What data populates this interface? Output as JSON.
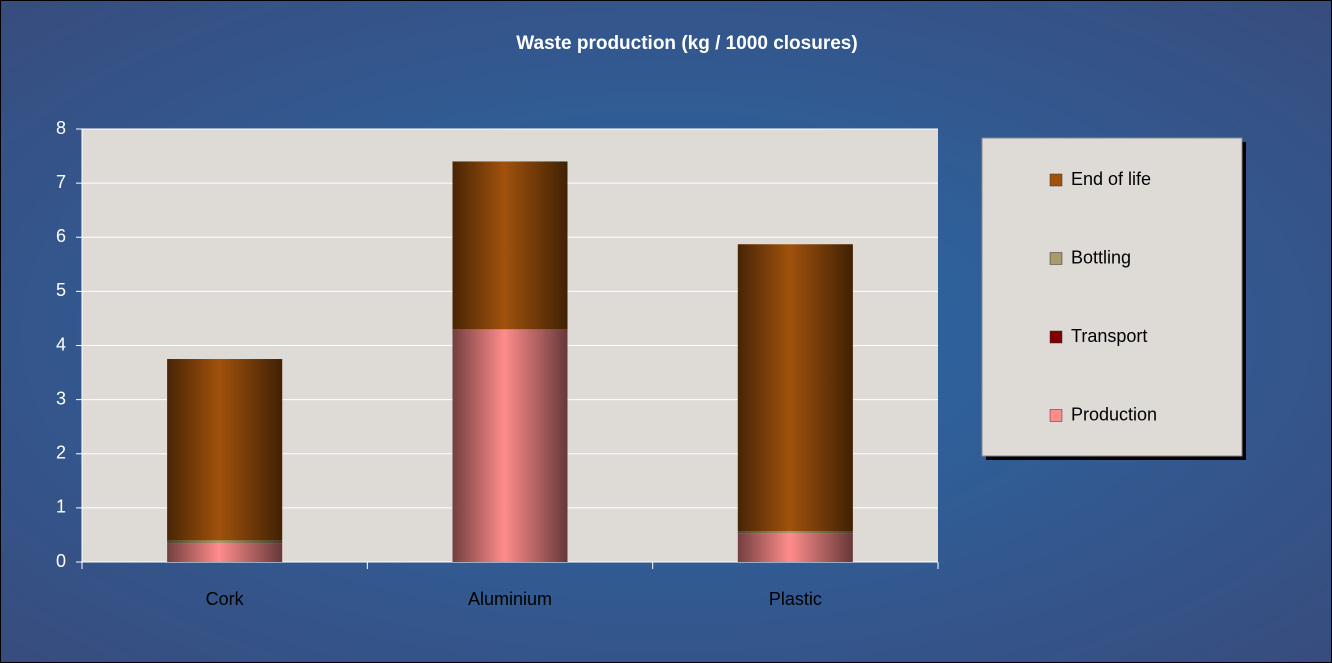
{
  "chart_data": {
    "type": "stacked_bar",
    "title": "Waste production (kg  / 1000 closures)",
    "categories": [
      "Cork",
      "Aluminium",
      "Plastic"
    ],
    "series": [
      {
        "name": "Production",
        "color": "#ff8c8c",
        "values": [
          0.35,
          4.3,
          0.53
        ]
      },
      {
        "name": "Transport",
        "color": "#800000",
        "values": [
          0,
          0,
          0
        ]
      },
      {
        "name": "Bottling",
        "color": "#a89a6a",
        "values": [
          0.05,
          0,
          0.04
        ]
      },
      {
        "name": "End of life",
        "color": "#a0520c",
        "values": [
          3.35,
          3.1,
          5.3
        ]
      }
    ],
    "ylim": [
      0,
      8
    ],
    "yticks": [
      0,
      1,
      2,
      3,
      4,
      5,
      6,
      7,
      8
    ],
    "grid": true,
    "legend": "right"
  }
}
